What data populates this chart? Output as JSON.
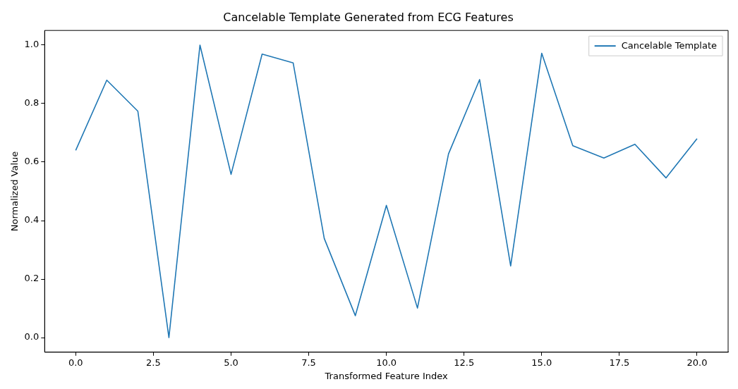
{
  "chart_data": {
    "type": "line",
    "title": "Cancelable Template Generated from ECG Features",
    "xlabel": "Transformed Feature Index",
    "ylabel": "Normalized Value",
    "x": [
      0,
      1,
      2,
      3,
      4,
      5,
      6,
      7,
      8,
      9,
      10,
      11,
      12,
      13,
      14,
      15,
      16,
      17,
      18,
      19,
      20
    ],
    "series": [
      {
        "name": "Cancelable Template",
        "color": "#1f77b4",
        "values": [
          0.64,
          0.88,
          0.774,
          0.0,
          1.0,
          0.558,
          0.969,
          0.939,
          0.339,
          0.075,
          0.452,
          0.101,
          0.628,
          0.882,
          0.245,
          0.972,
          0.656,
          0.614,
          0.661,
          0.546,
          0.68
        ]
      }
    ],
    "xlim": [
      -1,
      21
    ],
    "ylim": [
      -0.05,
      1.05
    ],
    "xticks": [
      {
        "value": 0,
        "label": "0.0"
      },
      {
        "value": 2.5,
        "label": "2.5"
      },
      {
        "value": 5,
        "label": "5.0"
      },
      {
        "value": 7.5,
        "label": "7.5"
      },
      {
        "value": 10,
        "label": "10.0"
      },
      {
        "value": 12.5,
        "label": "12.5"
      },
      {
        "value": 15,
        "label": "15.0"
      },
      {
        "value": 17.5,
        "label": "17.5"
      },
      {
        "value": 20,
        "label": "20.0"
      }
    ],
    "yticks": [
      {
        "value": 0,
        "label": "0.0"
      },
      {
        "value": 0.2,
        "label": "0.2"
      },
      {
        "value": 0.4,
        "label": "0.4"
      },
      {
        "value": 0.6,
        "label": "0.6"
      },
      {
        "value": 0.8,
        "label": "0.8"
      },
      {
        "value": 1,
        "label": "1.0"
      }
    ],
    "grid": false,
    "legend": "top right",
    "marker": "none",
    "line_style": "solid"
  }
}
